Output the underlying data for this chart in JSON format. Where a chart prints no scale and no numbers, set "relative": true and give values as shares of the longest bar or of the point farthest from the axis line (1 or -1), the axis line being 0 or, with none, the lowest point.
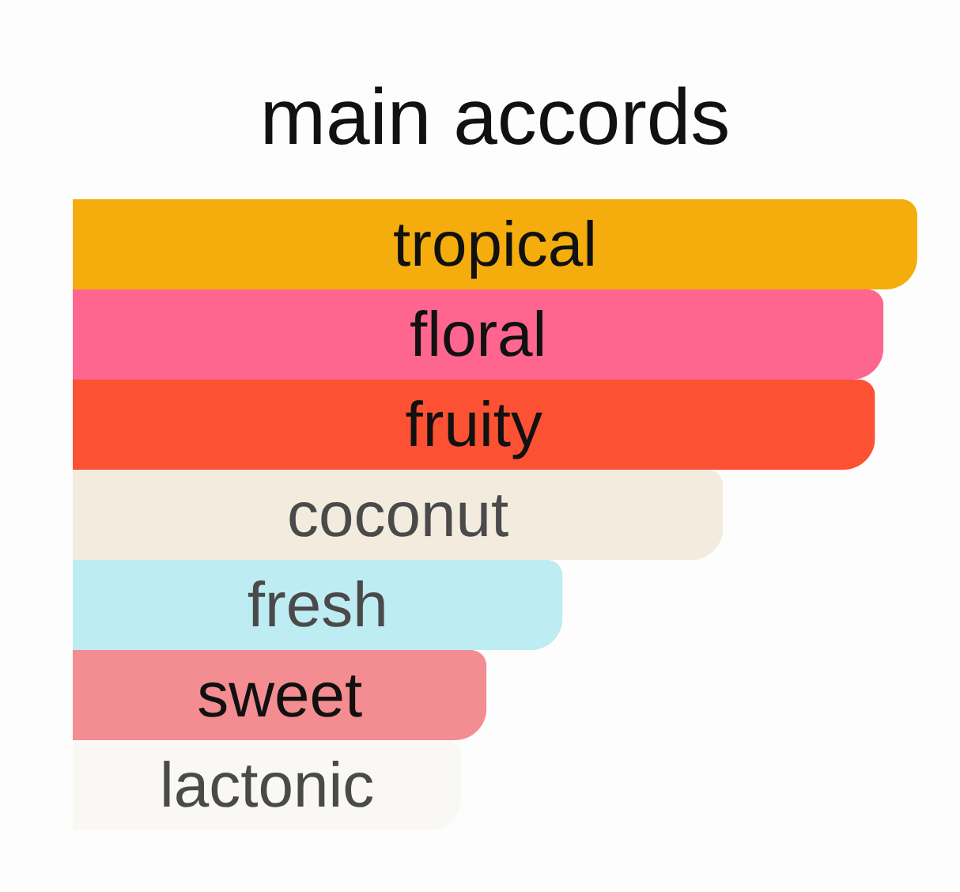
{
  "chart_data": {
    "type": "bar",
    "orientation": "horizontal",
    "relative": true,
    "title": "main accords",
    "categories": [
      "tropical",
      "floral",
      "fruity",
      "coconut",
      "fresh",
      "sweet",
      "lactonic"
    ],
    "values": [
      1,
      0.96,
      0.95,
      0.77,
      0.58,
      0.49,
      0.46
    ],
    "colors": [
      "#f5ad0d",
      "#fe668f",
      "#fc5233",
      "#f3ebdd",
      "#bdecf2",
      "#f48d91",
      "#faf8f4"
    ]
  }
}
